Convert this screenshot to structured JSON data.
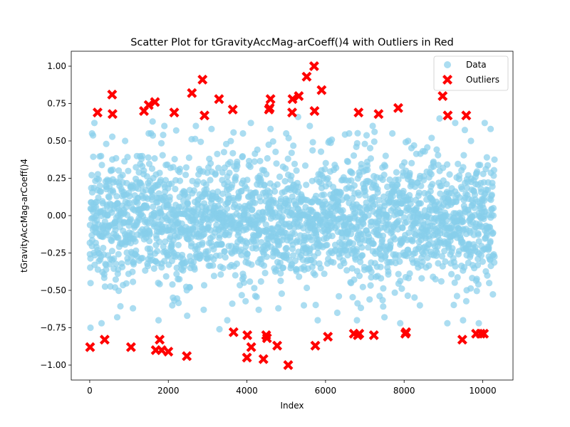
{
  "chart_data": {
    "type": "scatter",
    "title": "Scatter Plot for tGravityAccMag-arCoeff()4 with Outliers in Red",
    "xlabel": "Index",
    "ylabel": "tGravityAccMag-arCoeff()4",
    "xlim": [
      -470,
      10770
    ],
    "ylim": [
      -1.1,
      1.1
    ],
    "x_ticks": [
      0,
      2000,
      4000,
      6000,
      8000,
      10000
    ],
    "x_tick_labels": [
      "0",
      "2000",
      "4000",
      "6000",
      "8000",
      "10000"
    ],
    "y_ticks": [
      -1.0,
      -0.75,
      -0.5,
      -0.25,
      0.0,
      0.25,
      0.5,
      0.75,
      1.0
    ],
    "y_tick_labels": [
      "−1.00",
      "−0.75",
      "−0.50",
      "−0.25",
      "0.00",
      "0.25",
      "0.50",
      "0.75",
      "1.00"
    ],
    "grid": false,
    "legend_position": "top-right",
    "data_density": {
      "n_points": 10299,
      "x_range": [
        0,
        10298
      ],
      "y_typical": [
        -0.55,
        0.55
      ],
      "y_dense": [
        -0.35,
        0.35
      ]
    },
    "series": [
      {
        "name": "Data",
        "color": "#87ceeb",
        "marker": "circle",
        "sample_points": [
          [
            20,
            -0.75
          ],
          [
            60,
            0.55
          ],
          [
            120,
            0.62
          ],
          [
            300,
            -0.72
          ],
          [
            420,
            0.48
          ],
          [
            700,
            -0.68
          ],
          [
            900,
            0.5
          ],
          [
            1100,
            -0.62
          ],
          [
            1500,
            0.55
          ],
          [
            1600,
            0.63
          ],
          [
            1750,
            -0.7
          ],
          [
            1900,
            0.6
          ],
          [
            2100,
            -0.6
          ],
          [
            2200,
            0.57
          ],
          [
            2480,
            -0.67
          ],
          [
            2700,
            0.6
          ],
          [
            2900,
            -0.63
          ],
          [
            3100,
            0.58
          ],
          [
            3300,
            -0.76
          ],
          [
            3500,
            -0.7
          ],
          [
            3900,
            0.55
          ],
          [
            4100,
            0.62
          ],
          [
            4300,
            -0.63
          ],
          [
            4600,
            0.58
          ],
          [
            4800,
            -0.62
          ],
          [
            5000,
            0.55
          ],
          [
            5300,
            0.66
          ],
          [
            5450,
            -0.6
          ],
          [
            5600,
            0.6
          ],
          [
            5800,
            -0.7
          ],
          [
            6100,
            0.5
          ],
          [
            6300,
            -0.65
          ],
          [
            6600,
            0.55
          ],
          [
            6800,
            -0.7
          ],
          [
            7000,
            0.48
          ],
          [
            7200,
            0.6
          ],
          [
            7500,
            -0.68
          ],
          [
            7700,
            0.55
          ],
          [
            7900,
            -0.72
          ],
          [
            8100,
            0.5
          ],
          [
            8400,
            -0.6
          ],
          [
            8700,
            0.52
          ],
          [
            8900,
            0.65
          ],
          [
            9100,
            -0.72
          ],
          [
            9300,
            0.62
          ],
          [
            9500,
            -0.7
          ],
          [
            9700,
            0.5
          ],
          [
            9900,
            -0.72
          ],
          [
            10050,
            0.62
          ],
          [
            10200,
            0.58
          ]
        ]
      },
      {
        "name": "Outliers",
        "color": "#ff0000",
        "marker": "x",
        "points": [
          [
            10,
            -0.88
          ],
          [
            200,
            0.69
          ],
          [
            380,
            -0.83
          ],
          [
            570,
            0.81
          ],
          [
            580,
            0.68
          ],
          [
            1050,
            -0.88
          ],
          [
            1380,
            0.7
          ],
          [
            1500,
            0.74
          ],
          [
            1660,
            0.76
          ],
          [
            1680,
            -0.9
          ],
          [
            1780,
            -0.83
          ],
          [
            1830,
            -0.9
          ],
          [
            2000,
            -0.91
          ],
          [
            2150,
            0.69
          ],
          [
            2470,
            -0.94
          ],
          [
            2600,
            0.82
          ],
          [
            2870,
            0.91
          ],
          [
            2920,
            0.67
          ],
          [
            3290,
            0.78
          ],
          [
            3640,
            0.71
          ],
          [
            3660,
            -0.78
          ],
          [
            4000,
            -0.95
          ],
          [
            4010,
            -0.8
          ],
          [
            4110,
            -0.88
          ],
          [
            4420,
            -0.96
          ],
          [
            4490,
            -0.8
          ],
          [
            4510,
            -0.82
          ],
          [
            4560,
            0.71
          ],
          [
            4580,
            0.72
          ],
          [
            4600,
            0.78
          ],
          [
            4770,
            -0.87
          ],
          [
            5050,
            -1.0
          ],
          [
            5150,
            0.69
          ],
          [
            5160,
            0.78
          ],
          [
            5320,
            0.8
          ],
          [
            5520,
            0.93
          ],
          [
            5710,
            1.0
          ],
          [
            5720,
            0.7
          ],
          [
            5740,
            -0.87
          ],
          [
            5900,
            0.84
          ],
          [
            6060,
            -0.81
          ],
          [
            6720,
            -0.79
          ],
          [
            6820,
            -0.8
          ],
          [
            6840,
            0.69
          ],
          [
            6860,
            -0.79
          ],
          [
            7230,
            -0.8
          ],
          [
            7350,
            0.68
          ],
          [
            7850,
            0.72
          ],
          [
            8030,
            -0.79
          ],
          [
            8050,
            -0.78
          ],
          [
            8980,
            0.8
          ],
          [
            9110,
            0.67
          ],
          [
            9480,
            -0.83
          ],
          [
            9580,
            0.67
          ],
          [
            9830,
            -0.79
          ],
          [
            9950,
            -0.79
          ],
          [
            10030,
            -0.79
          ]
        ]
      }
    ]
  }
}
